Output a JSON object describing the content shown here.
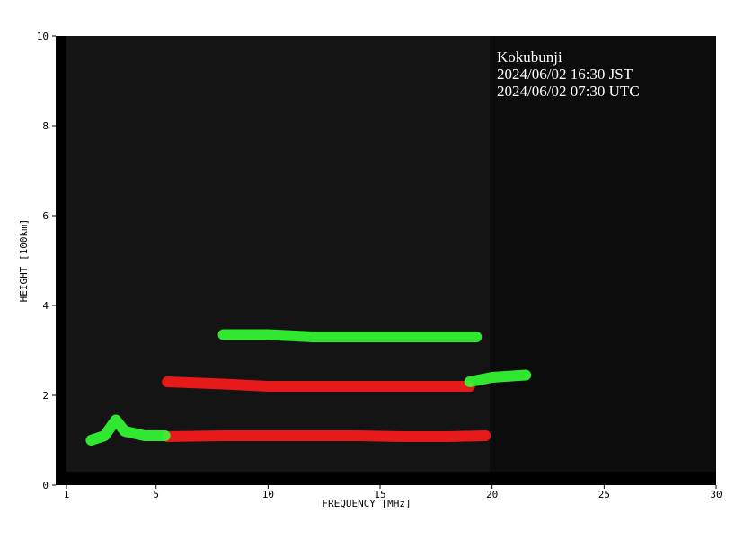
{
  "chart_data": {
    "type": "ionogram",
    "xlabel": "FREQUENCY [MHz]",
    "ylabel": "HEIGHT [100km]",
    "annotations": [
      "Kokubunji",
      "2024/06/02 16:30 JST",
      "2024/06/02 07:30 UTC"
    ],
    "xlim": [
      1,
      30
    ],
    "ylim": [
      0,
      10
    ],
    "xticks": [
      1,
      5,
      10,
      15,
      20,
      25,
      30
    ],
    "yticks": [
      0,
      2,
      4,
      6,
      8,
      10
    ],
    "series": [
      {
        "color": "#ff1a1a",
        "x": [
          5.5,
          8,
          10,
          12,
          14,
          16,
          18,
          19.7
        ],
        "y": [
          1.08,
          1.1,
          1.1,
          1.1,
          1.1,
          1.08,
          1.08,
          1.1
        ]
      },
      {
        "color": "#ff1a1a",
        "x": [
          5.5,
          8,
          10,
          12,
          14,
          16,
          18,
          19
        ],
        "y": [
          2.3,
          2.25,
          2.2,
          2.2,
          2.2,
          2.2,
          2.2,
          2.2
        ]
      },
      {
        "color": "#33ff33",
        "x": [
          2.1,
          2.7,
          3.2,
          3.6,
          4.5,
          5.4
        ],
        "y": [
          1.0,
          1.1,
          1.45,
          1.2,
          1.1,
          1.1
        ]
      },
      {
        "color": "#33ff33",
        "x": [
          8,
          10,
          12,
          14,
          16,
          18,
          19.3
        ],
        "y": [
          3.35,
          3.35,
          3.3,
          3.3,
          3.3,
          3.3,
          3.3
        ]
      },
      {
        "color": "#33ff33",
        "x": [
          19,
          20,
          21.5
        ],
        "y": [
          2.3,
          2.4,
          2.45
        ]
      }
    ]
  }
}
